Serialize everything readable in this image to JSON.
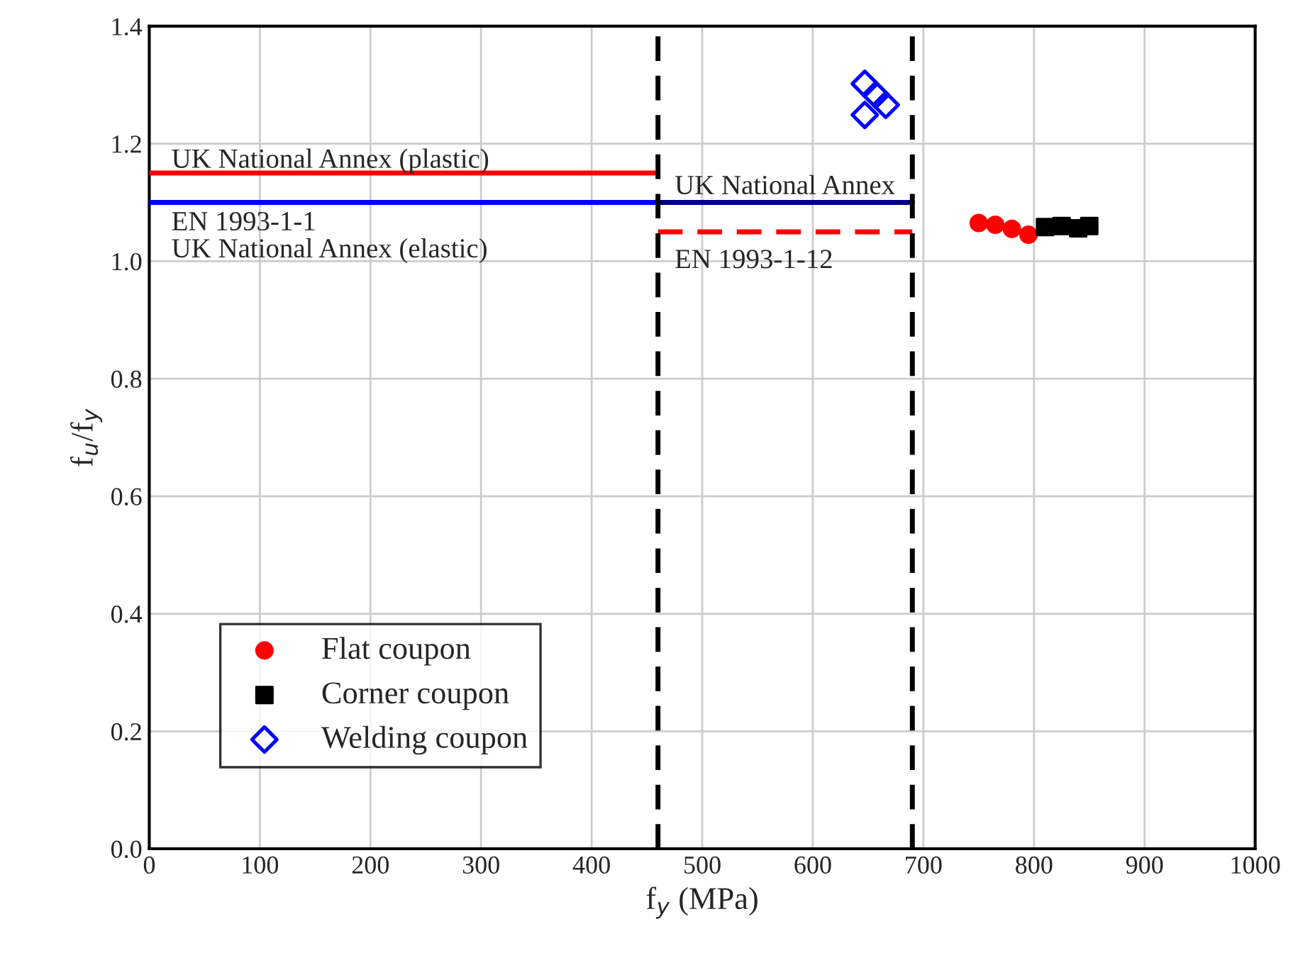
{
  "chart_data": {
    "type": "scatter",
    "xlabel": "f$_{y}$ (MPa)",
    "ylabel": "f$_{u}$/f$_{y}$",
    "xlim": [
      0,
      1000
    ],
    "ylim": [
      0,
      1.4
    ],
    "xticks": [
      0,
      100,
      200,
      300,
      400,
      500,
      600,
      700,
      800,
      900,
      1000
    ],
    "yticks": [
      {
        "value": 0,
        "label": "0.0"
      },
      {
        "value": 0.2,
        "label": "0.2"
      },
      {
        "value": 0.4,
        "label": "0.4"
      },
      {
        "value": 0.6,
        "label": "0.6"
      },
      {
        "value": 0.8,
        "label": "0.8"
      },
      {
        "value": 1.0,
        "label": "1.0"
      },
      {
        "value": 1.2,
        "label": "1.2"
      },
      {
        "value": 1.4,
        "label": "1.4"
      }
    ],
    "grid": true,
    "legend": "bottom left",
    "series": [
      {
        "name": "Flat coupon",
        "marker": "circle",
        "color": "#ff0000",
        "x": [
          750,
          765,
          780,
          795
        ],
        "values": [
          1.065,
          1.062,
          1.055,
          1.045
        ]
      },
      {
        "name": "Corner coupon",
        "marker": "square",
        "color": "#000000",
        "x": [
          810,
          825,
          840,
          850
        ],
        "values": [
          1.058,
          1.06,
          1.056,
          1.06
        ]
      },
      {
        "name": "Welding coupon",
        "marker": "diamond",
        "color": "#0000ff",
        "x": [
          647,
          657,
          666,
          647
        ],
        "values": [
          1.302,
          1.283,
          1.266,
          1.249
        ]
      },
      {
        "type": "line",
        "line_style": "solid",
        "color": "#ff0000",
        "x": [
          0,
          460
        ],
        "values": [
          1.15,
          1.15
        ]
      },
      {
        "type": "line",
        "line_style": "solid",
        "color": "#0000ff",
        "x": [
          0,
          460
        ],
        "values": [
          1.1,
          1.1
        ]
      },
      {
        "type": "line",
        "line_style": "solid",
        "color": "#000080",
        "x": [
          460,
          690
        ],
        "values": [
          1.1,
          1.1
        ]
      },
      {
        "type": "line",
        "line_style": "dashed",
        "color": "#ff0000",
        "x": [
          460,
          690
        ],
        "values": [
          1.05,
          1.05
        ]
      }
    ],
    "ref_lines": [
      {
        "axis": "x",
        "value": 460,
        "color": "#000000",
        "line_style": "dashed"
      },
      {
        "axis": "x",
        "value": 690,
        "color": "#000000",
        "line_style": "dashed"
      }
    ],
    "annotations": [
      "UK National Annex (plastic)",
      "EN 1993-1-1",
      "UK National Annex (elastic)",
      "UK National Annex",
      "EN 1993-1-12"
    ]
  }
}
